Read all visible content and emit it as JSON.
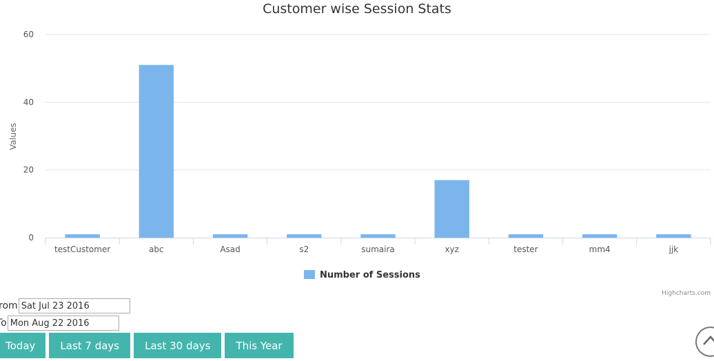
{
  "chart_data": {
    "type": "bar",
    "title": "Customer wise Session Stats",
    "xlabel": "",
    "ylabel": "Values",
    "categories": [
      "testCustomer",
      "abc",
      "Asad",
      "s2",
      "sumaira",
      "xyz",
      "tester",
      "mm4",
      "jjk"
    ],
    "series": [
      {
        "name": "Number of Sessions",
        "values": [
          1,
          51,
          1,
          1,
          1,
          17,
          1,
          1,
          1
        ],
        "color": "#7cb5ec"
      }
    ],
    "ylim": [
      0,
      60
    ],
    "yticks": [
      0,
      20,
      40,
      60
    ],
    "grid": true,
    "legend_position": "bottom-center",
    "credit": "Highcharts.com"
  },
  "filters": {
    "from_label": "From",
    "from_value": "Sat Jul 23 2016",
    "to_label": "To",
    "to_value": "Mon Aug 22 2016"
  },
  "buttons": {
    "today": "Today",
    "last7": "Last 7 days",
    "last30": "Last 30 days",
    "this_year": "This Year"
  },
  "colors": {
    "bar": "#7cb5ec",
    "button": "#44b5ad",
    "grid": "#e6e6e6"
  },
  "icons": {
    "scroll_top": "chevron-up-icon"
  }
}
